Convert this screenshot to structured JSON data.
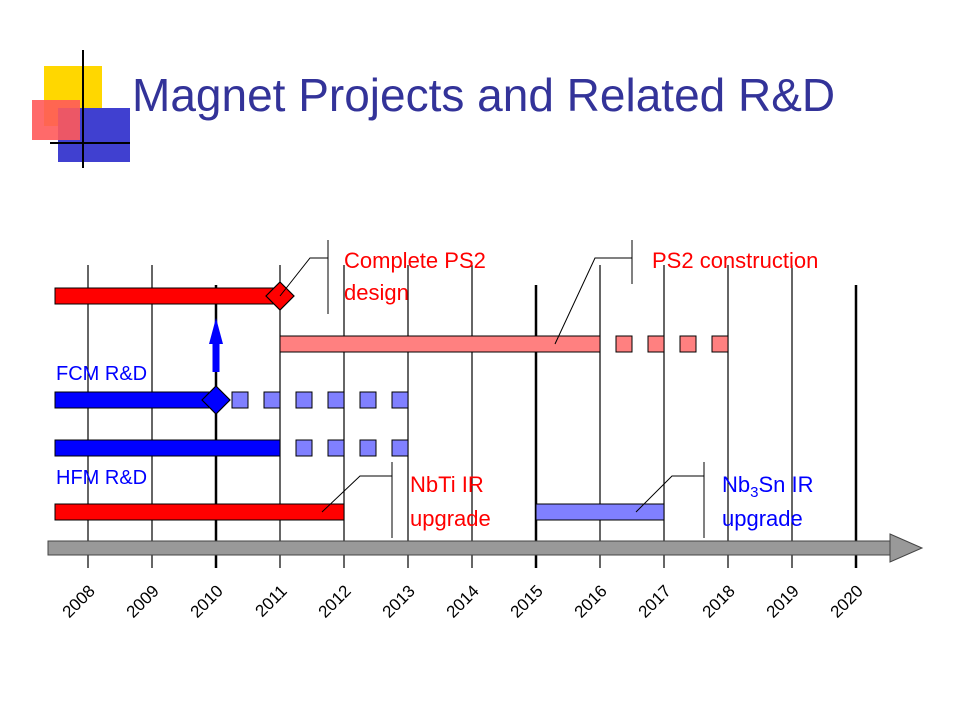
{
  "title": "Magnet Projects and Related R&D",
  "colors": {
    "title": "#333399",
    "red": "#ff0000",
    "pink": "#ff8080",
    "blue": "#0000ff",
    "light_blue": "#8080ff",
    "gray": "#999999"
  },
  "timeline": {
    "years": [
      "2008",
      "2009",
      "2010",
      "2011",
      "2012",
      "2013",
      "2014",
      "2015",
      "2016",
      "2017",
      "2018",
      "2019",
      "2020"
    ],
    "first_year": 2008,
    "last_year": 2020
  },
  "rows": [
    {
      "key": "ps2_design",
      "label": "",
      "color": "#ff0000",
      "solid": [
        2008,
        2011
      ],
      "dashed": null,
      "milestone": 2011
    },
    {
      "key": "ps2_construction",
      "label": "",
      "color": "#ff8080",
      "solid": [
        2011,
        2016
      ],
      "dashed": [
        2016,
        2018
      ],
      "milestone": null
    },
    {
      "key": "fcm_rd",
      "label": "FCM R&D",
      "color": "#0000ff",
      "solid": [
        2008,
        2010
      ],
      "dashed": [
        2010,
        2013
      ],
      "milestone": 2010
    },
    {
      "key": "hfm_rd",
      "label": "HFM R&D",
      "color": "#0000ff",
      "solid": [
        2008,
        2011
      ],
      "dashed": [
        2011,
        2013
      ],
      "milestone": null
    },
    {
      "key": "nbti_ir",
      "label": "",
      "color": "#ff0000",
      "solid": [
        2008,
        2012
      ],
      "dashed": null,
      "milestone": null
    },
    {
      "key": "nb3sn_ir",
      "label": "",
      "color": "#8080ff",
      "solid": [
        2015,
        2017
      ],
      "dashed": null,
      "milestone": null
    }
  ],
  "callouts": {
    "complete_ps2": {
      "line1": "Complete PS2",
      "line2": "design"
    },
    "ps2_construction": {
      "line1": "PS2 construction"
    },
    "nbti": {
      "line1": "NbTi IR",
      "line2": "upgrade"
    },
    "nb3sn": {
      "pre": "Nb",
      "sub": "3",
      "post": "Sn IR",
      "line2": "upgrade"
    }
  }
}
